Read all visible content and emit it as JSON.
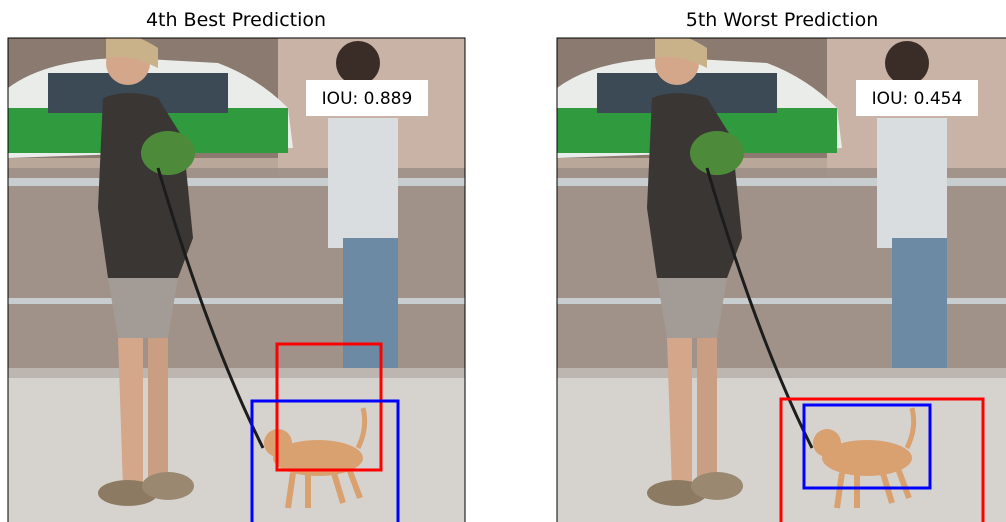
{
  "panels": [
    {
      "title": "4th Best Prediction",
      "iou_label": "IOU: 0.889"
    },
    {
      "title": "5th Worst Prediction",
      "iou_label": "IOU: 0.454"
    }
  ]
}
